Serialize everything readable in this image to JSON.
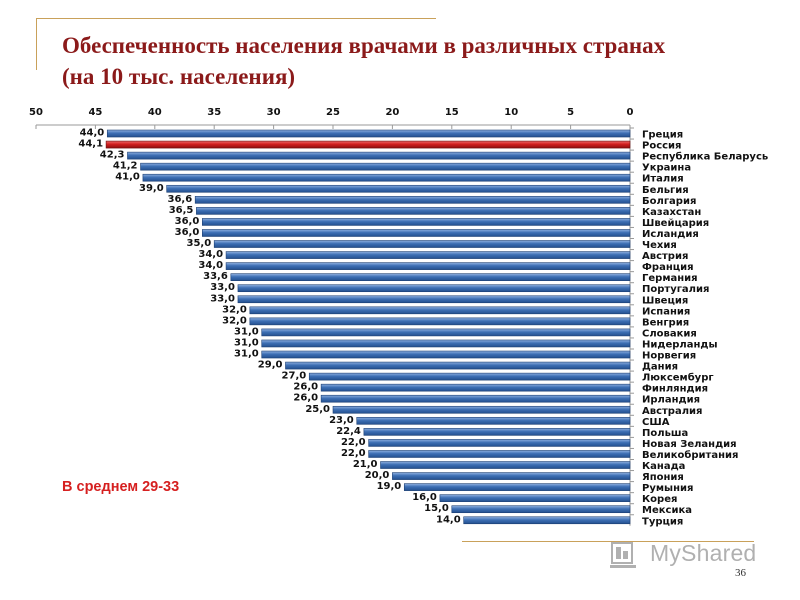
{
  "title_line1": "Обеспеченность населения врачами в различных странах",
  "title_line2": "(на 10 тыс. населения)",
  "average_note": "В среднем 29-33",
  "watermark": "MyShared",
  "page_number": "36",
  "colors": {
    "bar": "#3d6fb4",
    "bar_highlight": "#d11e1e",
    "title": "#8b1a1a",
    "note": "#d62020",
    "decor": "#c9a15a"
  },
  "chart_data": {
    "type": "bar",
    "orientation": "horizontal",
    "x_reversed": true,
    "xlim": [
      0,
      50
    ],
    "ticks": [
      "50",
      "45",
      "40",
      "35",
      "30",
      "25",
      "20",
      "15",
      "10",
      "5",
      "0"
    ],
    "tick_values": [
      50,
      45,
      40,
      35,
      30,
      25,
      20,
      15,
      10,
      5,
      0
    ],
    "highlight_category": "Россия",
    "categories": [
      "Греция",
      "Россия",
      "Республика Беларусь",
      "Украина",
      "Италия",
      "Бельгия",
      "Болгария",
      "Казахстан",
      "Швейцария",
      "Исландия",
      "Чехия",
      "Австрия",
      "Франция",
      "Германия",
      "Португалия",
      "Швеция",
      "Испания",
      "Венгрия",
      "Словакия",
      "Нидерланды",
      "Норвегия",
      "Дания",
      "Люксембург",
      "Финляндия",
      "Ирландия",
      "Австралия",
      "США",
      "Польша",
      "Новая Зеландия",
      "Великобритания",
      "Канада",
      "Япония",
      "Румыния",
      "Корея",
      "Мексика",
      "Турция"
    ],
    "values": [
      44.0,
      44.1,
      42.3,
      41.2,
      41.0,
      39.0,
      36.6,
      36.5,
      36.0,
      36.0,
      35.0,
      34.0,
      34.0,
      33.6,
      33.0,
      33.0,
      32.0,
      32.0,
      31.0,
      31.0,
      31.0,
      29.0,
      27.0,
      26.0,
      26.0,
      25.0,
      23.0,
      22.4,
      22.0,
      22.0,
      21.0,
      20.0,
      19.0,
      16.0,
      15.0,
      14.0
    ],
    "value_labels": [
      "44,0",
      "44,1",
      "42,3",
      "41,2",
      "41,0",
      "39,0",
      "36,6",
      "36,5",
      "36,0",
      "36,0",
      "35,0",
      "34,0",
      "34,0",
      "33,6",
      "33,0",
      "33,0",
      "32,0",
      "32,0",
      "31,0",
      "31,0",
      "31,0",
      "29,0",
      "27,0",
      "26,0",
      "26,0",
      "25,0",
      "23,0",
      "22,4",
      "22,0",
      "22,0",
      "21,0",
      "20,0",
      "19,0",
      "16,0",
      "15,0",
      "14,0"
    ]
  }
}
